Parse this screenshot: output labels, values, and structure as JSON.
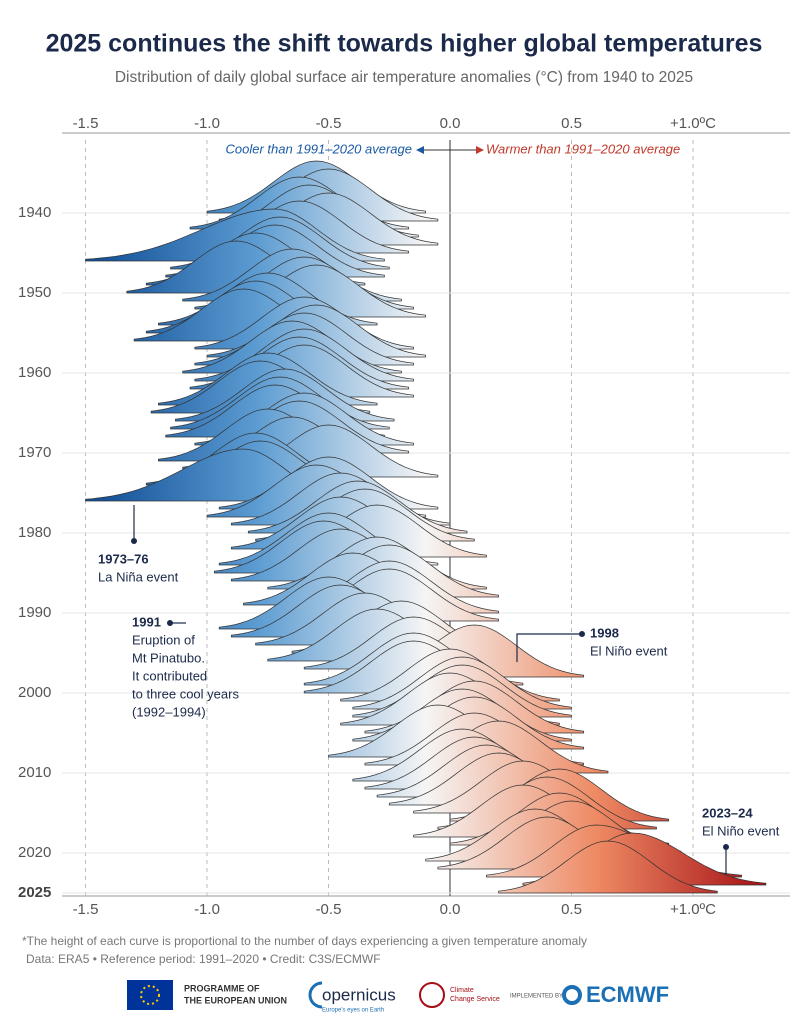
{
  "chart_data": {
    "type": "ridgeline",
    "title": "2025 continues the shift towards higher global temperatures",
    "subtitle": "Distribution of daily global surface air temperature anomalies (°C) from 1940 to 2025",
    "cooler_label": "Cooler than 1991–2020 average",
    "warmer_label": "Warmer than 1991–2020 average",
    "xlim": [
      -1.5,
      1.3
    ],
    "xticks": [
      -1.5,
      {
        "value": -1,
        "label": "-1.0"
      },
      -0.5,
      {
        "value": 0,
        "label": "0.0"
      },
      0.5,
      {
        "value": 1,
        "label": "+1.0ºC"
      }
    ],
    "ylim": [
      1940,
      2025
    ],
    "yticks": [
      1940,
      1950,
      1960,
      1970,
      1980,
      1990,
      2000,
      2010,
      2020,
      2025
    ],
    "colormap": [
      "#0d4a93",
      "#5b9bd1",
      "#f5f5f5",
      "#ee8a64",
      "#a50f15"
    ],
    "years": [
      1940,
      1941,
      1942,
      1943,
      1944,
      1945,
      1946,
      1947,
      1948,
      1949,
      1950,
      1951,
      1952,
      1953,
      1954,
      1955,
      1956,
      1957,
      1958,
      1959,
      1960,
      1961,
      1962,
      1963,
      1964,
      1965,
      1966,
      1967,
      1968,
      1969,
      1970,
      1971,
      1972,
      1973,
      1974,
      1975,
      1976,
      1977,
      1978,
      1979,
      1980,
      1981,
      1982,
      1983,
      1984,
      1985,
      1986,
      1987,
      1988,
      1989,
      1990,
      1991,
      1992,
      1993,
      1994,
      1995,
      1996,
      1997,
      1998,
      1999,
      2000,
      2001,
      2002,
      2003,
      2004,
      2005,
      2006,
      2007,
      2008,
      2009,
      2010,
      2011,
      2012,
      2013,
      2014,
      2015,
      2016,
      2017,
      2018,
      2019,
      2020,
      2021,
      2022,
      2023,
      2024,
      2025
    ],
    "peak": [
      -0.55,
      -0.5,
      -0.62,
      -0.58,
      -0.5,
      -0.62,
      -0.72,
      -0.7,
      -0.72,
      -0.8,
      -0.88,
      -0.65,
      -0.6,
      -0.55,
      -0.75,
      -0.8,
      -0.85,
      -0.6,
      -0.55,
      -0.6,
      -0.65,
      -0.6,
      -0.62,
      -0.6,
      -0.75,
      -0.78,
      -0.68,
      -0.7,
      -0.72,
      -0.6,
      -0.62,
      -0.75,
      -0.65,
      -0.5,
      -0.8,
      -0.78,
      -0.85,
      -0.5,
      -0.55,
      -0.45,
      -0.38,
      -0.35,
      -0.45,
      -0.3,
      -0.5,
      -0.52,
      -0.45,
      -0.3,
      -0.25,
      -0.4,
      -0.25,
      -0.25,
      -0.5,
      -0.45,
      -0.35,
      -0.2,
      -0.3,
      -0.15,
      0.1,
      -0.15,
      -0.15,
      0.0,
      0.05,
      0.05,
      0.0,
      0.1,
      0.05,
      0.1,
      -0.05,
      0.1,
      0.2,
      0.05,
      0.1,
      0.15,
      0.2,
      0.3,
      0.45,
      0.4,
      0.3,
      0.45,
      0.5,
      0.35,
      0.4,
      0.6,
      0.75,
      0.65
    ],
    "min": [
      -1.0,
      -0.95,
      -1.07,
      -1.03,
      -0.95,
      -1.07,
      -1.5,
      -1.15,
      -1.17,
      -1.25,
      -1.33,
      -1.1,
      -1.05,
      -1.0,
      -1.2,
      -1.25,
      -1.3,
      -1.05,
      -1.0,
      -1.05,
      -1.1,
      -1.05,
      -1.07,
      -1.05,
      -1.2,
      -1.23,
      -1.13,
      -1.15,
      -1.17,
      -1.05,
      -1.07,
      -1.2,
      -1.1,
      -0.95,
      -1.25,
      -1.23,
      -1.5,
      -0.95,
      -1.0,
      -0.9,
      -0.83,
      -0.8,
      -0.9,
      -0.75,
      -0.95,
      -0.97,
      -0.9,
      -0.75,
      -0.7,
      -0.85,
      -0.7,
      -0.7,
      -0.95,
      -0.9,
      -0.8,
      -0.65,
      -0.75,
      -0.6,
      -0.35,
      -0.6,
      -0.6,
      -0.45,
      -0.4,
      -0.4,
      -0.45,
      -0.35,
      -0.4,
      -0.35,
      -0.5,
      -0.35,
      -0.25,
      -0.4,
      -0.35,
      -0.3,
      -0.25,
      -0.15,
      0.0,
      -0.05,
      -0.15,
      0.0,
      0.05,
      -0.1,
      -0.05,
      0.15,
      0.3,
      0.2
    ],
    "max": [
      -0.1,
      -0.05,
      -0.17,
      -0.13,
      -0.05,
      -0.17,
      -0.27,
      -0.25,
      -0.27,
      -0.35,
      -0.43,
      -0.2,
      -0.15,
      -0.1,
      -0.3,
      -0.35,
      -0.4,
      -0.15,
      -0.1,
      -0.15,
      -0.2,
      -0.15,
      -0.17,
      -0.15,
      -0.3,
      -0.33,
      -0.23,
      -0.25,
      -0.27,
      -0.15,
      -0.17,
      -0.3,
      -0.2,
      -0.05,
      -0.35,
      -0.33,
      -0.4,
      -0.05,
      -0.1,
      0.0,
      0.07,
      0.1,
      0.0,
      0.15,
      -0.05,
      -0.07,
      0.0,
      0.15,
      0.2,
      0.05,
      0.2,
      0.2,
      -0.05,
      0.0,
      0.1,
      0.25,
      0.15,
      0.3,
      0.55,
      0.3,
      0.3,
      0.45,
      0.5,
      0.5,
      0.45,
      0.55,
      0.5,
      0.55,
      0.4,
      0.55,
      0.65,
      0.5,
      0.55,
      0.6,
      0.65,
      0.75,
      0.9,
      0.85,
      0.75,
      0.9,
      0.95,
      0.8,
      0.85,
      1.2,
      1.3,
      1.1
    ],
    "annotations": [
      {
        "title": "1973–76",
        "lines": [
          "La Niña event"
        ]
      },
      {
        "title": "1991",
        "lines": [
          "Eruption of",
          "Mt Pinatubo.",
          "It contributed",
          "to three cool years",
          "(1992–1994)"
        ]
      },
      {
        "title": "1998",
        "lines": [
          "El Niño event"
        ]
      },
      {
        "title": "2023–24",
        "lines": [
          "El Niño event"
        ]
      }
    ],
    "footnote": "*The height of each curve is proportional to the number of days experiencing a given temperature anomaly",
    "source": "Data: ERA5 • Reference period: 1991–2020 • Credit: C3S/ECMWF"
  },
  "footer": {
    "eu": [
      "PROGRAMME OF",
      "THE EUROPEAN UNION"
    ],
    "copernicus": "opernicus",
    "copernicus_sub": "Europe's eyes on Earth",
    "c3s": [
      "Climate",
      "Change Service"
    ],
    "implemented": "IMPLEMENTED BY",
    "ecmwf": "ECMWF"
  }
}
